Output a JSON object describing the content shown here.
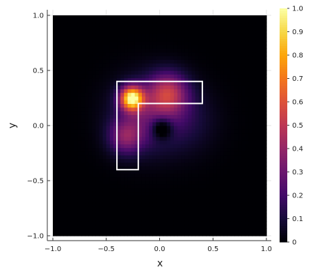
{
  "chart_data": {
    "type": "heatmap",
    "title": "",
    "xlabel": "x",
    "ylabel": "y",
    "xlim": [
      -1.0,
      1.0
    ],
    "ylim": [
      -1.0,
      1.0
    ],
    "x_ticks": [
      "−1.0",
      "−0.5",
      "0.0",
      "0.5",
      "1.0"
    ],
    "x_tick_values": [
      -1.0,
      -0.5,
      0.0,
      0.5,
      1.0
    ],
    "y_ticks": [
      "−1.0",
      "−0.5",
      "0.0",
      "0.5",
      "1.0"
    ],
    "y_tick_values": [
      -1.0,
      -0.5,
      0.0,
      0.5,
      1.0
    ],
    "colorbar": {
      "colormap": "inferno",
      "range": [
        0,
        1
      ],
      "ticks": [
        "0",
        "0.1",
        "0.2",
        "0.3",
        "0.4",
        "0.5",
        "0.6",
        "0.7",
        "0.8",
        "0.9",
        "1.0"
      ],
      "tick_values": [
        0,
        0.1,
        0.2,
        0.3,
        0.4,
        0.5,
        0.6,
        0.7,
        0.8,
        0.9,
        1.0
      ]
    },
    "grid": true,
    "field_peak": {
      "x": -0.26,
      "y": 0.25,
      "value": 1.0
    },
    "l_shape_outline": {
      "color": "#ffffff",
      "vertices": [
        [
          -0.4,
          0.4
        ],
        [
          0.4,
          0.4
        ],
        [
          0.4,
          0.2
        ],
        [
          -0.2,
          0.2
        ],
        [
          -0.2,
          -0.4
        ],
        [
          -0.4,
          -0.4
        ]
      ]
    }
  }
}
